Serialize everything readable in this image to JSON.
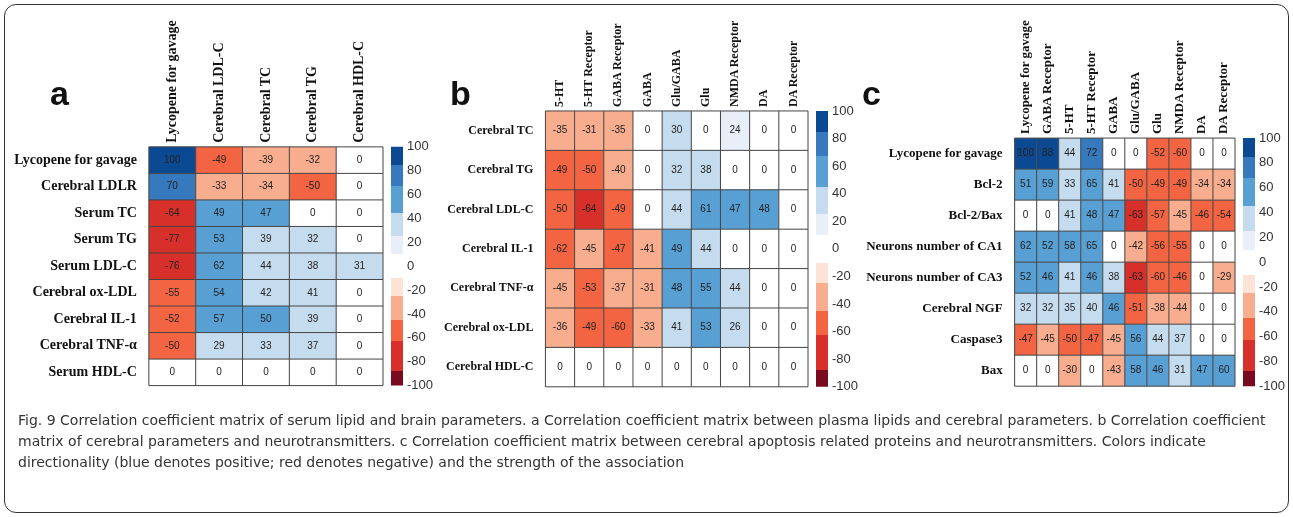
{
  "chart_data": [
    {
      "type": "heatmap",
      "title": "a",
      "categories": [
        "Lycopene for gavage",
        "Cerebral LDL-C",
        "Cerebral TC",
        "Cerebral TG",
        "Cerebral HDL-C"
      ],
      "y_categories": [
        "Lycopene for gavage",
        "Cerebral LDLR",
        "Serum TC",
        "Serum TG",
        "Serum LDL-C",
        "Cerebral ox-LDL",
        "Cerebral IL-1",
        "Cerebral TNF-α",
        "Serum HDL-C"
      ],
      "cells": [
        [
          100,
          -49,
          -39,
          -32,
          0
        ],
        [
          70,
          -33,
          -34,
          -50,
          0
        ],
        [
          -64,
          49,
          47,
          0,
          0
        ],
        [
          -77,
          53,
          39,
          32,
          0
        ],
        [
          -76,
          62,
          44,
          38,
          31
        ],
        [
          -55,
          54,
          42,
          41,
          0
        ],
        [
          -52,
          57,
          50,
          39,
          0
        ],
        [
          -50,
          29,
          33,
          37,
          0
        ],
        [
          0,
          0,
          0,
          0,
          0
        ]
      ],
      "clim": [
        -100,
        100
      ],
      "cticks": [
        -100,
        -80,
        -60,
        -40,
        -20,
        0,
        20,
        40,
        60,
        80,
        100
      ],
      "data_labels": true,
      "grid": true,
      "annotations": [
        "Fig. 9 Correlation coefficient matrix of serum lipid and brain parameters. a Correlation coefficient matrix between plasma lipids and cerebral parameters. b Correlation coefficient matrix of cerebral parameters and neurotransmitters. c Correlation coefficient matrix between cerebral apoptosis related proteins and neurotransmitters. Colors indicate directionality (blue denotes positive; red denotes negative) and the strength of the association"
      ]
    },
    {
      "type": "heatmap",
      "title": "b",
      "categories": [
        "5-HT",
        "5-HT Receptor",
        "GABA Receptor",
        "GABA",
        "Glu/GABA",
        "Glu",
        "NMDA Receptor",
        "DA",
        "DA Receptor"
      ],
      "y_categories": [
        "Cerebral TC",
        "Cerebral TG",
        "Cerebral LDL-C",
        "Cerebral IL-1",
        "Cerebral TNF-α",
        "Cerebral ox-LDL",
        "Cerebral HDL-C"
      ],
      "cells": [
        [
          -35,
          -31,
          -35,
          0,
          30,
          0,
          24,
          0,
          0
        ],
        [
          -49,
          -50,
          -40,
          0,
          32,
          38,
          0,
          0,
          0
        ],
        [
          -50,
          -64,
          -49,
          0,
          44,
          61,
          47,
          48,
          0
        ],
        [
          -62,
          -45,
          -47,
          -41,
          49,
          44,
          0,
          0,
          0
        ],
        [
          -45,
          -53,
          -37,
          -31,
          48,
          55,
          44,
          0,
          0
        ],
        [
          -36,
          -49,
          -60,
          -33,
          41,
          53,
          26,
          0,
          0
        ],
        [
          0,
          0,
          0,
          0,
          0,
          0,
          0,
          0,
          0
        ]
      ],
      "clim": [
        -100,
        100
      ],
      "cticks": [
        -100,
        -80,
        -60,
        -40,
        -20,
        0,
        20,
        40,
        60,
        80,
        100
      ],
      "data_labels": true,
      "grid": true
    },
    {
      "type": "heatmap",
      "title": "c",
      "categories": [
        "Lycopene for gavage",
        "GABA Receptor",
        "5-HT",
        "5-HT Receptor",
        "GABA",
        "Glu/GABA",
        "Glu",
        "NMDA Receptor",
        "DA",
        "DA Receptor"
      ],
      "y_categories": [
        "Lycopene for gavage",
        "Bcl-2",
        "Bcl-2/Bax",
        "Neurons number of CA1",
        "Neurons number of CA3",
        "Cerebral NGF",
        "Caspase3",
        "Bax"
      ],
      "cells": [
        [
          100,
          88,
          44,
          72,
          0,
          0,
          -52,
          -60,
          0,
          0
        ],
        [
          51,
          59,
          33,
          65,
          41,
          -50,
          -49,
          -49,
          -34,
          -34
        ],
        [
          0,
          0,
          41,
          48,
          47,
          -63,
          -57,
          -45,
          -46,
          -54
        ],
        [
          62,
          52,
          58,
          65,
          0,
          -42,
          -56,
          -55,
          0,
          0
        ],
        [
          52,
          46,
          41,
          46,
          38,
          -63,
          -60,
          -46,
          0,
          -29
        ],
        [
          32,
          32,
          35,
          40,
          46,
          -51,
          -38,
          -44,
          0,
          0
        ],
        [
          -47,
          -45,
          -50,
          -47,
          -45,
          56,
          44,
          37,
          0,
          0
        ],
        [
          0,
          0,
          -30,
          0,
          -43,
          58,
          46,
          31,
          47,
          60
        ]
      ],
      "clim": [
        -100,
        100
      ],
      "cticks": [
        -100,
        -80,
        -60,
        -40,
        -20,
        0,
        20,
        40,
        60,
        80,
        100
      ],
      "data_labels": true,
      "grid": true
    }
  ]
}
